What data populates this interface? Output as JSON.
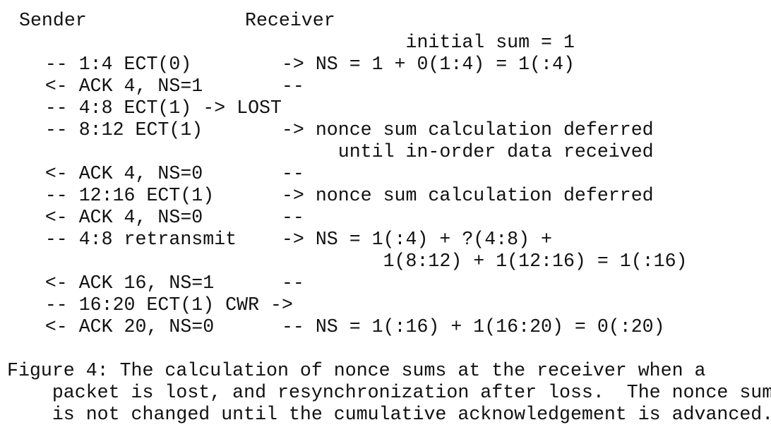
{
  "diagram": {
    "header_sender": "Sender",
    "header_receiver": "Receiver",
    "lines": [
      "                                    initial sum = 1",
      "    -- 1:4 ECT(0)        -> NS = 1 + 0(1:4) = 1(:4)",
      "    <- ACK 4, NS=1       --",
      "    -- 4:8 ECT(1) -> LOST",
      "    -- 8:12 ECT(1)       -> nonce sum calculation deferred",
      "                              until in-order data received",
      "    <- ACK 4, NS=0       --",
      "    -- 12:16 ECT(1)      -> nonce sum calculation deferred",
      "    <- ACK 4, NS=0       --",
      "    -- 4:8 retransmit    -> NS = 1(:4) + ?(4:8) +",
      "                                  1(8:12) + 1(12:16) = 1(:16)",
      "    <- ACK 16, NS=1      --",
      "    -- 16:20 ECT(1) CWR ->",
      "    <- ACK 20, NS=0      -- NS = 1(:16) + 1(16:20) = 0(:20)"
    ]
  },
  "caption": {
    "lines": [
      "Figure 4: The calculation of nonce sums at the receiver when a",
      "    packet is lost, and resynchronization after loss.  The nonce sum",
      "    is not changed until the cumulative acknowledgement is advanced."
    ]
  }
}
